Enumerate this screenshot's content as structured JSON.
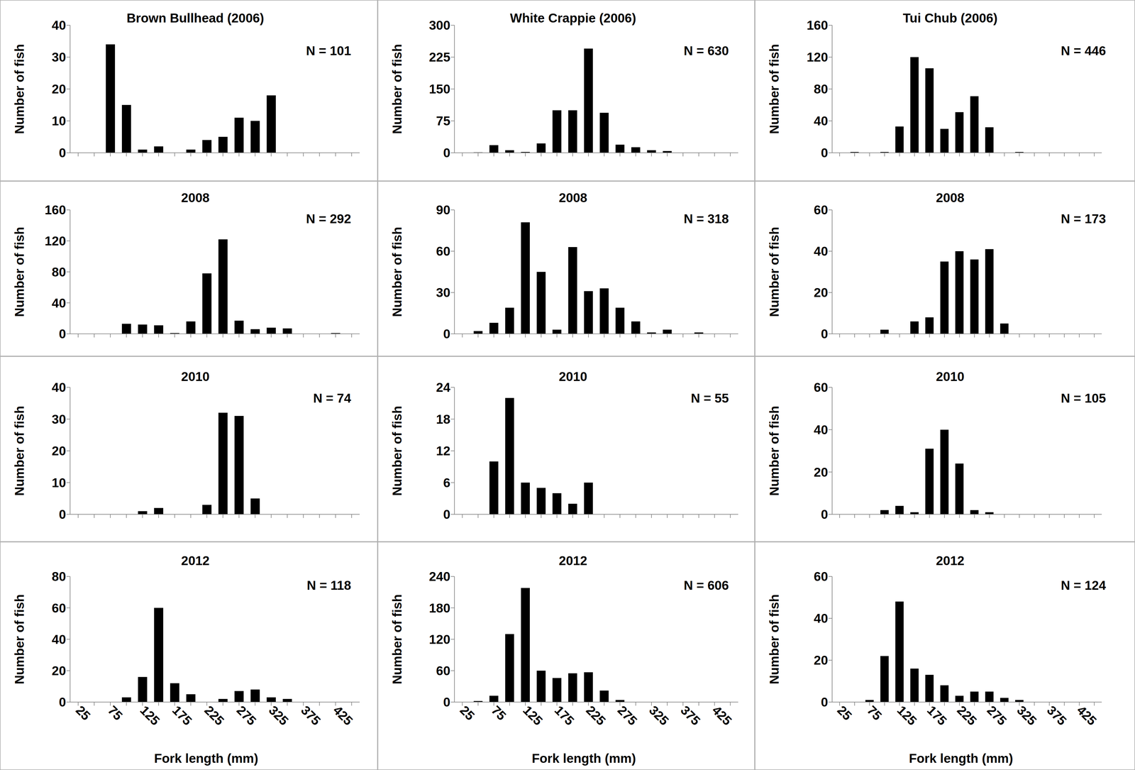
{
  "chart_data": [
    {
      "type": "bar",
      "title": "Brown Bullhead (2006)",
      "annotations": [
        "N = 101"
      ],
      "y_label": "Number of fish",
      "categories": [
        "25",
        null,
        "75",
        null,
        "125",
        null,
        "175",
        null,
        "225",
        null,
        "275",
        null,
        "325",
        null,
        "375",
        null,
        "425",
        null
      ],
      "values": [
        0,
        0,
        34,
        15,
        1,
        2,
        0,
        1,
        4,
        5,
        11,
        10,
        18,
        0,
        0,
        0,
        0,
        0
      ],
      "color": "#000000",
      "ylim": [
        0,
        40
      ],
      "yticks": [
        0,
        10,
        20,
        30,
        40
      ],
      "tick_labels": "y"
    },
    {
      "type": "bar",
      "title": "White Crappie (2006)",
      "annotations": [
        "N = 630"
      ],
      "y_label": "Number of fish",
      "categories": [
        "25",
        null,
        "75",
        null,
        "125",
        null,
        "175",
        null,
        "225",
        null,
        "275",
        null,
        "325",
        null,
        "375",
        null,
        "425",
        null
      ],
      "values": [
        0,
        1,
        18,
        6,
        2,
        22,
        100,
        100,
        245,
        94,
        19,
        13,
        6,
        4,
        0,
        0,
        0,
        0
      ],
      "color": "#000000",
      "ylim": [
        0,
        300
      ],
      "yticks": [
        0,
        75,
        150,
        225,
        300
      ],
      "tick_labels": "y"
    },
    {
      "type": "bar",
      "title": "Tui Chub (2006)",
      "annotations": [
        "N = 446"
      ],
      "y_label": "Number of fish",
      "categories": [
        "25",
        null,
        "75",
        null,
        "125",
        null,
        "175",
        null,
        "225",
        null,
        "275",
        null,
        "325",
        null,
        "375",
        null,
        "425",
        null
      ],
      "values": [
        0,
        1,
        0,
        1,
        33,
        120,
        106,
        30,
        51,
        71,
        32,
        0,
        1,
        0,
        0,
        0,
        0,
        0
      ],
      "color": "#000000",
      "ylim": [
        0,
        160
      ],
      "yticks": [
        0,
        40,
        80,
        120,
        160
      ],
      "tick_labels": "y"
    },
    {
      "type": "bar",
      "title": "2008",
      "annotations": [
        "N = 292"
      ],
      "y_label": "Number of fish",
      "categories": [
        "25",
        null,
        "75",
        null,
        "125",
        null,
        "175",
        null,
        "225",
        null,
        "275",
        null,
        "325",
        null,
        "375",
        null,
        "425",
        null
      ],
      "values": [
        0,
        0,
        0,
        13,
        12,
        11,
        1,
        16,
        78,
        122,
        17,
        6,
        8,
        7,
        0,
        0,
        1,
        0
      ],
      "color": "#000000",
      "ylim": [
        0,
        160
      ],
      "yticks": [
        0,
        40,
        80,
        120,
        160
      ],
      "tick_labels": "y"
    },
    {
      "type": "bar",
      "title": "2008",
      "annotations": [
        "N = 318"
      ],
      "y_label": "Number of fish",
      "categories": [
        "25",
        null,
        "75",
        null,
        "125",
        null,
        "175",
        null,
        "225",
        null,
        "275",
        null,
        "325",
        null,
        "375",
        null,
        "425",
        null
      ],
      "values": [
        0,
        2,
        8,
        19,
        81,
        45,
        3,
        63,
        31,
        33,
        19,
        9,
        1,
        3,
        0,
        1,
        0,
        0
      ],
      "color": "#000000",
      "ylim": [
        0,
        90
      ],
      "yticks": [
        0,
        30,
        60,
        90
      ],
      "tick_labels": "y"
    },
    {
      "type": "bar",
      "title": "2008",
      "annotations": [
        "N = 173"
      ],
      "y_label": "Number of fish",
      "categories": [
        "25",
        null,
        "75",
        null,
        "125",
        null,
        "175",
        null,
        "225",
        null,
        "275",
        null,
        "325",
        null,
        "375",
        null,
        "425",
        null
      ],
      "values": [
        0,
        0,
        0,
        2,
        0,
        6,
        8,
        35,
        40,
        36,
        41,
        5,
        0,
        0,
        0,
        0,
        0,
        0
      ],
      "color": "#000000",
      "ylim": [
        0,
        60
      ],
      "yticks": [
        0,
        20,
        40,
        60
      ],
      "tick_labels": "y"
    },
    {
      "type": "bar",
      "title": "2010",
      "annotations": [
        "N = 74"
      ],
      "y_label": "Number of fish",
      "categories": [
        "25",
        null,
        "75",
        null,
        "125",
        null,
        "175",
        null,
        "225",
        null,
        "275",
        null,
        "325",
        null,
        "375",
        null,
        "425",
        null
      ],
      "values": [
        0,
        0,
        0,
        0,
        1,
        2,
        0,
        0,
        3,
        32,
        31,
        5,
        0,
        0,
        0,
        0,
        0,
        0
      ],
      "color": "#000000",
      "ylim": [
        0,
        40
      ],
      "yticks": [
        0,
        10,
        20,
        30,
        40
      ],
      "tick_labels": "y"
    },
    {
      "type": "bar",
      "title": "2010",
      "annotations": [
        "N = 55"
      ],
      "y_label": "Number of fish",
      "categories": [
        "25",
        null,
        "75",
        null,
        "125",
        null,
        "175",
        null,
        "225",
        null,
        "275",
        null,
        "325",
        null,
        "375",
        null,
        "425",
        null
      ],
      "values": [
        0,
        0,
        10,
        22,
        6,
        5,
        4,
        2,
        6,
        0,
        0,
        0,
        0,
        0,
        0,
        0,
        0,
        0
      ],
      "color": "#000000",
      "ylim": [
        0,
        24
      ],
      "yticks": [
        0,
        6,
        12,
        18,
        24
      ],
      "tick_labels": "y"
    },
    {
      "type": "bar",
      "title": "2010",
      "annotations": [
        "N = 105"
      ],
      "y_label": "Number of fish",
      "categories": [
        "25",
        null,
        "75",
        null,
        "125",
        null,
        "175",
        null,
        "225",
        null,
        "275",
        null,
        "325",
        null,
        "375",
        null,
        "425",
        null
      ],
      "values": [
        0,
        0,
        0,
        2,
        4,
        1,
        31,
        40,
        24,
        2,
        1,
        0,
        0,
        0,
        0,
        0,
        0,
        0
      ],
      "color": "#000000",
      "ylim": [
        0,
        60
      ],
      "yticks": [
        0,
        20,
        40,
        60
      ],
      "tick_labels": "y"
    },
    {
      "type": "bar",
      "title": "2012",
      "annotations": [
        "N = 118"
      ],
      "y_label": "Number of fish",
      "x_label": "Fork length (mm)",
      "categories": [
        "25",
        null,
        "75",
        null,
        "125",
        null,
        "175",
        null,
        "225",
        null,
        "275",
        null,
        "325",
        null,
        "375",
        null,
        "425",
        null
      ],
      "values": [
        0,
        0,
        0,
        3,
        16,
        60,
        12,
        5,
        0,
        2,
        7,
        8,
        3,
        2,
        0,
        0,
        0,
        0
      ],
      "color": "#000000",
      "ylim": [
        0,
        80
      ],
      "yticks": [
        0,
        20,
        40,
        60,
        80
      ]
    },
    {
      "type": "bar",
      "title": "2012",
      "annotations": [
        "N = 606"
      ],
      "y_label": "Number of fish",
      "x_label": "Fork length (mm)",
      "categories": [
        "25",
        null,
        "75",
        null,
        "125",
        null,
        "175",
        null,
        "225",
        null,
        "275",
        null,
        "325",
        null,
        "375",
        null,
        "425",
        null
      ],
      "values": [
        0,
        2,
        12,
        130,
        218,
        60,
        46,
        55,
        57,
        22,
        4,
        0,
        0,
        0,
        0,
        0,
        0,
        0
      ],
      "color": "#000000",
      "ylim": [
        0,
        240
      ],
      "yticks": [
        0,
        60,
        120,
        180,
        240
      ]
    },
    {
      "type": "bar",
      "title": "2012",
      "annotations": [
        "N = 124"
      ],
      "y_label": "Number of fish",
      "x_label": "Fork length (mm)",
      "categories": [
        "25",
        null,
        "75",
        null,
        "125",
        null,
        "175",
        null,
        "225",
        null,
        "275",
        null,
        "325",
        null,
        "375",
        null,
        "425",
        null
      ],
      "values": [
        0,
        0,
        1,
        22,
        48,
        16,
        13,
        8,
        3,
        5,
        5,
        2,
        1,
        0,
        0,
        0,
        0,
        0
      ],
      "color": "#000000",
      "ylim": [
        0,
        60
      ],
      "yticks": [
        0,
        20,
        40,
        60
      ]
    }
  ]
}
